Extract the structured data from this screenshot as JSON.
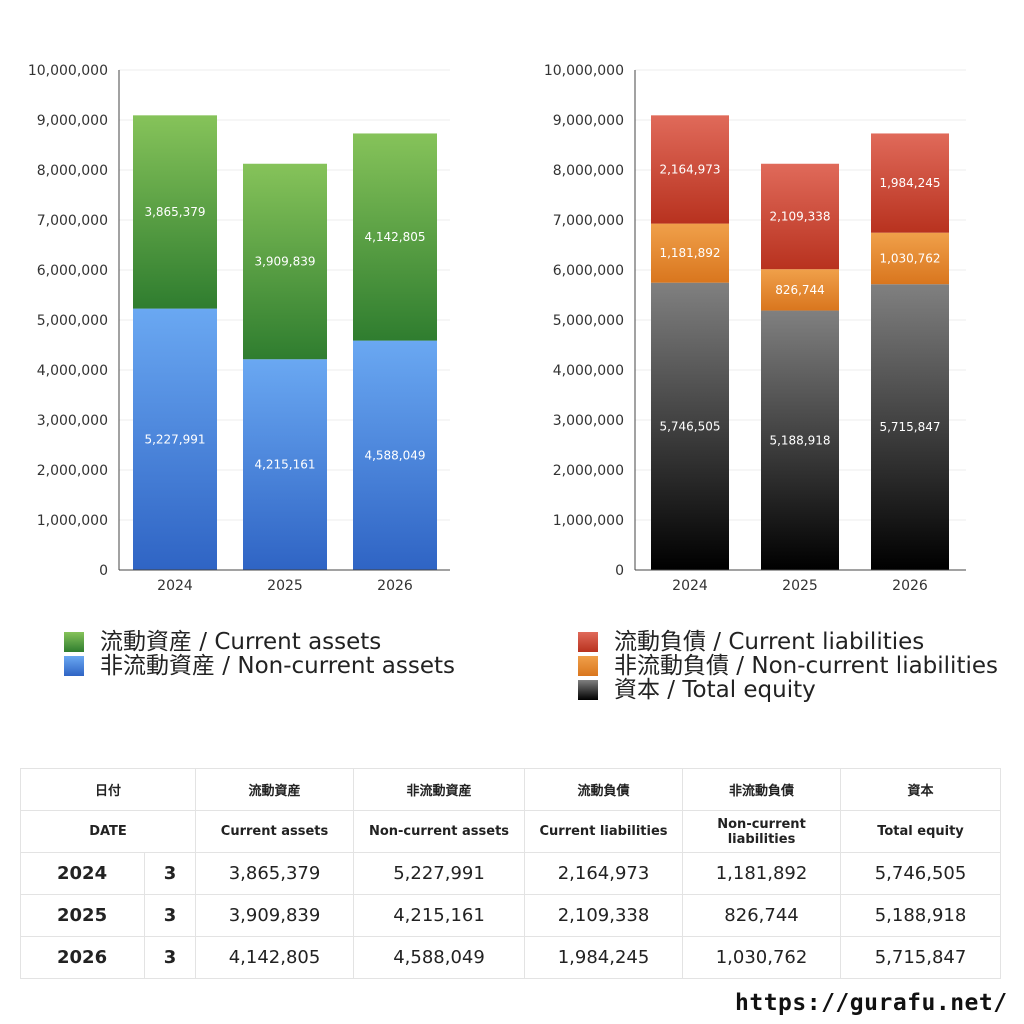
{
  "chart_data": [
    {
      "type": "bar",
      "stacked": true,
      "categories": [
        "2024",
        "2025",
        "2026"
      ],
      "series": [
        {
          "name": "非流動資産 / Non-current assets",
          "values": [
            5227991,
            4215161,
            4588049
          ],
          "labels": [
            "5,227,991",
            "4,215,161",
            "4,588,049"
          ],
          "color_top": "#6aa8f2",
          "color_bottom": "#2f64c4"
        },
        {
          "name": "流動資産 / Current assets",
          "values": [
            3865379,
            3909839,
            4142805
          ],
          "labels": [
            "3,865,379",
            "3,909,839",
            "4,142,805"
          ],
          "color_top": "#86c35a",
          "color_bottom": "#2f7d2f"
        }
      ],
      "ylim": [
        0,
        10000000
      ],
      "yticks": [
        "0",
        "1,000,000",
        "2,000,000",
        "3,000,000",
        "4,000,000",
        "5,000,000",
        "6,000,000",
        "7,000,000",
        "8,000,000",
        "9,000,000",
        "10,000,000"
      ],
      "grid": true,
      "legend_placement": "bottom",
      "legend_order": [
        1,
        0
      ]
    },
    {
      "type": "bar",
      "stacked": true,
      "categories": [
        "2024",
        "2025",
        "2026"
      ],
      "series": [
        {
          "name": "資本 / Total equity",
          "values": [
            5746505,
            5188918,
            5715847
          ],
          "labels": [
            "5,746,505",
            "5,188,918",
            "5,715,847"
          ],
          "color_top": "#808080",
          "color_bottom": "#000000"
        },
        {
          "name": "非流動負債 / Non-current liabilities",
          "values": [
            1181892,
            826744,
            1030762
          ],
          "labels": [
            "1,181,892",
            "826,744",
            "1,030,762"
          ],
          "color_top": "#f0a04a",
          "color_bottom": "#d9761e"
        },
        {
          "name": "流動負債 / Current liabilities",
          "values": [
            2164973,
            2109338,
            1984245
          ],
          "labels": [
            "2,164,973",
            "2,109,338",
            "1,984,245"
          ],
          "color_top": "#e06a5a",
          "color_bottom": "#b8321f"
        }
      ],
      "ylim": [
        0,
        10000000
      ],
      "yticks": [
        "0",
        "1,000,000",
        "2,000,000",
        "3,000,000",
        "4,000,000",
        "5,000,000",
        "6,000,000",
        "7,000,000",
        "8,000,000",
        "9,000,000",
        "10,000,000"
      ],
      "grid": true,
      "legend_placement": "bottom",
      "legend_order": [
        2,
        1,
        0
      ]
    }
  ],
  "table": {
    "header_jp": [
      "日付",
      "流動資産",
      "非流動資産",
      "流動負債",
      "非流動負債",
      "資本"
    ],
    "header_en": [
      "DATE",
      "Current assets",
      "Non-current assets",
      "Current liabilities",
      "Non-current liabilities",
      "Total equity"
    ],
    "rows": [
      {
        "year": "2024",
        "count": "3",
        "values": [
          "3,865,379",
          "5,227,991",
          "2,164,973",
          "1,181,892",
          "5,746,505"
        ]
      },
      {
        "year": "2025",
        "count": "3",
        "values": [
          "3,909,839",
          "4,215,161",
          "2,109,338",
          "826,744",
          "5,188,918"
        ]
      },
      {
        "year": "2026",
        "count": "3",
        "values": [
          "4,142,805",
          "4,588,049",
          "1,984,245",
          "1,030,762",
          "5,715,847"
        ]
      }
    ]
  },
  "site_url": "https://gurafu.net/"
}
